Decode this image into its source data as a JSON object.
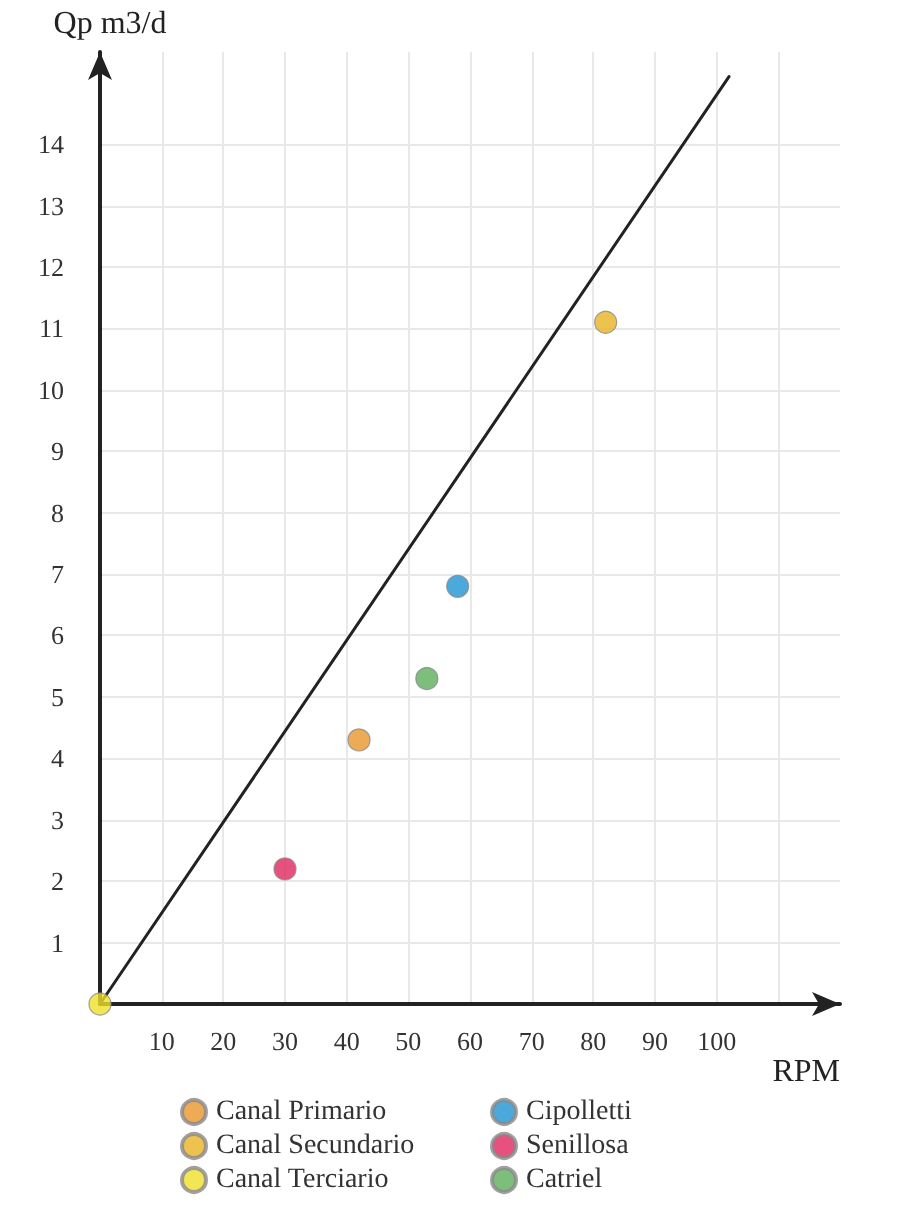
{
  "chart_data": {
    "type": "scatter",
    "xlabel": "RPM",
    "ylabel": "Qp m3/d",
    "xlim": [
      0,
      120
    ],
    "ylim": [
      0,
      15.5
    ],
    "xticks": [
      10,
      20,
      30,
      40,
      50,
      60,
      70,
      80,
      90,
      100,
      {
        "value": 110,
        "label": null
      }
    ],
    "yticks": [
      1,
      2,
      3,
      4,
      5,
      6,
      7,
      8,
      9,
      10,
      11,
      12,
      13,
      14
    ],
    "grid": true,
    "legend": "bottom",
    "marker": "circle",
    "line_style": "solid",
    "series": [
      {
        "name": "Canal Primario",
        "color": "#e8962a",
        "x": [
          42
        ],
        "values": [
          4.3
        ]
      },
      {
        "name": "Canal Secundario",
        "color": "#e8b323",
        "x": [
          82
        ],
        "values": [
          11.1
        ]
      },
      {
        "name": "Canal Terciario",
        "color": "#efe02a",
        "x": [
          0
        ],
        "values": [
          0
        ]
      },
      {
        "name": "Cipolletti",
        "color": "#1f93d3",
        "x": [
          58
        ],
        "values": [
          6.8
        ]
      },
      {
        "name": "Senillosa",
        "color": "#e0255e",
        "x": [
          30
        ],
        "values": [
          2.2
        ]
      },
      {
        "name": "Catriel",
        "color": "#5dae5d",
        "x": [
          53
        ],
        "values": [
          5.3
        ]
      },
      {
        "type": "line",
        "marker": "none",
        "color": "#222222",
        "x": [
          0,
          102
        ],
        "values": [
          0,
          15.1
        ]
      }
    ]
  }
}
